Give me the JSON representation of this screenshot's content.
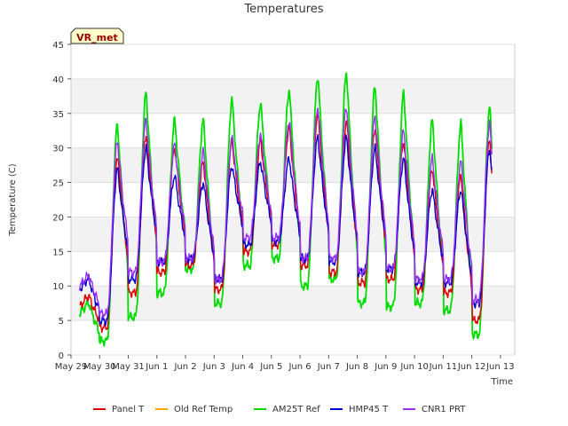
{
  "chart_data": {
    "type": "line",
    "title": "Temperatures",
    "xlabel": "Time",
    "ylabel": "Temperature (C)",
    "ylim": [
      0,
      45
    ],
    "yticks": [
      0,
      5,
      10,
      15,
      20,
      25,
      30,
      35,
      40,
      45
    ],
    "xlim": [
      0,
      15.5
    ],
    "x_tick_labels": [
      "May 29",
      "May 30",
      "May 31",
      "Jun 1",
      "Jun 2",
      "Jun 3",
      "Jun 4",
      "Jun 5",
      "Jun 6",
      "Jun 7",
      "Jun 8",
      "Jun 9",
      "Jun 10",
      "Jun 11",
      "Jun 12",
      "Jun 13"
    ],
    "site_label": "VR_met",
    "grid": "horizontal bands",
    "legend_position": "bottom",
    "days": [
      "May 29",
      "May 30",
      "May 31",
      "Jun 1",
      "Jun 2",
      "Jun 3",
      "Jun 4",
      "Jun 5",
      "Jun 6",
      "Jun 7",
      "Jun 8",
      "Jun 9",
      "Jun 10",
      "Jun 11",
      "Jun 12"
    ],
    "series": [
      {
        "name": "Panel T",
        "color": "#dd0000",
        "daily_min": [
          7,
          4,
          9,
          12,
          13,
          9.5,
          15,
          16,
          13,
          12,
          10.5,
          11,
          9.5,
          9,
          5
        ],
        "daily_max": [
          null,
          29,
          32,
          30,
          28,
          31,
          31,
          33,
          35,
          34,
          33,
          31,
          27,
          26,
          31
        ]
      },
      {
        "name": "Old Ref Temp",
        "color": "#ffa500",
        "daily_min": [],
        "daily_max": []
      },
      {
        "name": "AM25T Ref",
        "color": "#00dd00",
        "daily_min": [
          6,
          2,
          5.5,
          9,
          12.5,
          7.5,
          13,
          14,
          10,
          11,
          7.5,
          7,
          7.5,
          6.5,
          3
        ],
        "daily_max": [
          null,
          33.5,
          38,
          34,
          34,
          37,
          36.5,
          38.5,
          40.5,
          41,
          39,
          38,
          34,
          33.5,
          36
        ]
      },
      {
        "name": "HMP45 T",
        "color": "#0000cc",
        "daily_min": [
          9.5,
          5,
          11,
          13.5,
          14,
          11,
          16,
          16.5,
          14,
          13.5,
          12,
          12.5,
          10.5,
          10.5,
          7.5
        ],
        "daily_max": [
          null,
          27,
          30,
          26,
          25,
          27.5,
          28,
          28.5,
          31.5,
          31.5,
          30,
          28.5,
          24,
          24,
          30
        ]
      },
      {
        "name": "CNR1 PRT",
        "color": "#9b30ff",
        "daily_min": [
          10,
          6,
          12,
          13.5,
          14,
          11,
          17,
          17,
          14,
          14,
          12,
          12.5,
          11,
          11,
          8
        ],
        "daily_max": [
          null,
          31,
          34,
          30.5,
          29.5,
          31.5,
          32,
          34,
          36,
          36,
          34.5,
          32.5,
          28.5,
          28,
          33.5
        ]
      }
    ]
  }
}
